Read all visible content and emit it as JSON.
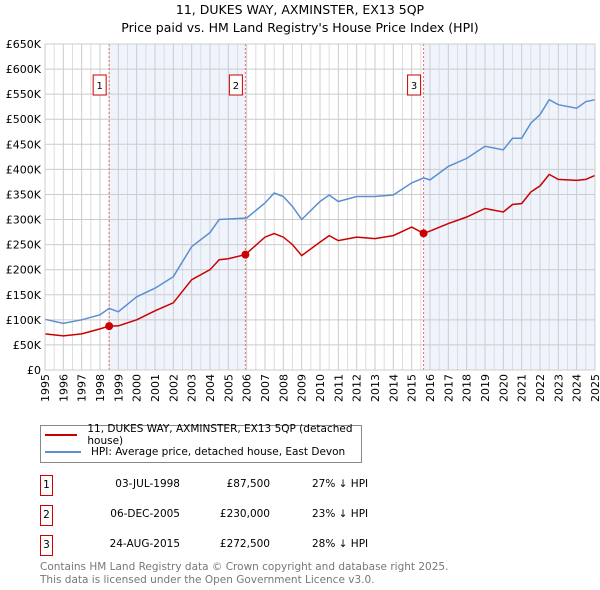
{
  "chart_data": {
    "type": "line",
    "title": "11, DUKES WAY, AXMINSTER, EX13 5QP",
    "subtitle": "Price paid vs. HM Land Registry's House Price Index (HPI)",
    "xlim": [
      1995,
      2025
    ],
    "ylim": [
      0,
      650000
    ],
    "x_ticks": [
      "1995",
      "1996",
      "1997",
      "1998",
      "1999",
      "2000",
      "2001",
      "2002",
      "2003",
      "2004",
      "2005",
      "2006",
      "2007",
      "2008",
      "2009",
      "2010",
      "2011",
      "2012",
      "2013",
      "2014",
      "2015",
      "2016",
      "2017",
      "2018",
      "2019",
      "2020",
      "2021",
      "2022",
      "2023",
      "2024",
      "2025"
    ],
    "y_ticks": [
      {
        "v": 0,
        "label": "£0"
      },
      {
        "v": 50000,
        "label": "£50K"
      },
      {
        "v": 100000,
        "label": "£100K"
      },
      {
        "v": 150000,
        "label": "£150K"
      },
      {
        "v": 200000,
        "label": "£200K"
      },
      {
        "v": 250000,
        "label": "£250K"
      },
      {
        "v": 300000,
        "label": "£300K"
      },
      {
        "v": 350000,
        "label": "£350K"
      },
      {
        "v": 400000,
        "label": "£400K"
      },
      {
        "v": 450000,
        "label": "£450K"
      },
      {
        "v": 500000,
        "label": "£500K"
      },
      {
        "v": 550000,
        "label": "£550K"
      },
      {
        "v": 600000,
        "label": "£600K"
      },
      {
        "v": 650000,
        "label": "£650K"
      }
    ],
    "grid": true,
    "series": [
      {
        "name": "11, DUKES WAY, AXMINSTER, EX13 5QP (detached house)",
        "color": "#cc0000",
        "x": [
          1995,
          1996,
          1997,
          1998,
          1998.5,
          1999,
          2000,
          2001,
          2002,
          2003,
          2004,
          2004.5,
          2005,
          2005.93,
          2007,
          2007.5,
          2008,
          2008.5,
          2009,
          2010,
          2010.5,
          2011,
          2012,
          2013,
          2014,
          2015,
          2015.65,
          2016,
          2017,
          2018,
          2019,
          2020,
          2020.5,
          2021,
          2021.5,
          2022,
          2022.5,
          2023,
          2024,
          2024.5,
          2025
        ],
        "y": [
          72000,
          68000,
          72000,
          82000,
          87500,
          88000,
          100000,
          118000,
          134000,
          180000,
          200000,
          220000,
          222000,
          230000,
          265000,
          272000,
          265000,
          250000,
          228000,
          255000,
          268000,
          258000,
          265000,
          262000,
          268000,
          285000,
          272500,
          277000,
          292000,
          305000,
          322000,
          315000,
          330000,
          332000,
          355000,
          367000,
          390000,
          380000,
          378000,
          380000,
          388000
        ]
      },
      {
        "name": "HPI: Average price, detached house, East Devon",
        "color": "#5b8fd0",
        "x": [
          1995,
          1996,
          1997,
          1998,
          1998.5,
          1999,
          2000,
          2001,
          2002,
          2003,
          2004,
          2004.5,
          2005,
          2006,
          2007,
          2007.5,
          2008,
          2008.5,
          2009,
          2010,
          2010.5,
          2011,
          2012,
          2013,
          2014,
          2015,
          2015.65,
          2016,
          2017,
          2018,
          2019,
          2020,
          2020.5,
          2021,
          2021.5,
          2022,
          2022.5,
          2023,
          2024,
          2024.5,
          2025
        ],
        "y": [
          101000,
          93000,
          100000,
          110000,
          123000,
          116000,
          146000,
          163000,
          186000,
          246000,
          274000,
          300000,
          301000,
          303000,
          333000,
          353000,
          346000,
          326000,
          300000,
          336000,
          349000,
          336000,
          346000,
          346000,
          349000,
          373000,
          383000,
          379000,
          406000,
          422000,
          446000,
          439000,
          462000,
          462000,
          492000,
          509000,
          539000,
          529000,
          522000,
          535000,
          539000
        ]
      }
    ],
    "shaded_ranges": [
      [
        1998.5,
        2005.93
      ],
      [
        2015.65,
        2025
      ]
    ],
    "annotations": [
      {
        "id": "1",
        "x": 1998.5,
        "y": 87500
      },
      {
        "id": "2",
        "x": 2005.93,
        "y": 230000
      },
      {
        "id": "3",
        "x": 2015.65,
        "y": 272500
      }
    ],
    "legend_placement": "bottom"
  },
  "legend": [
    {
      "label": "11, DUKES WAY, AXMINSTER, EX13 5QP (detached house)",
      "color": "#cc0000"
    },
    {
      "label": "HPI: Average price, detached house, East Devon",
      "color": "#5b8fd0"
    }
  ],
  "sales": [
    {
      "num": "1",
      "date": "03-JUL-1998",
      "price": "£87,500",
      "hpi": "27% ↓ HPI"
    },
    {
      "num": "2",
      "date": "06-DEC-2005",
      "price": "£230,000",
      "hpi": "23% ↓ HPI"
    },
    {
      "num": "3",
      "date": "24-AUG-2015",
      "price": "£272,500",
      "hpi": "28% ↓ HPI"
    }
  ],
  "footer": [
    "Contains HM Land Registry data © Crown copyright and database right 2025.",
    "This data is licensed under the Open Government Licence v3.0."
  ]
}
